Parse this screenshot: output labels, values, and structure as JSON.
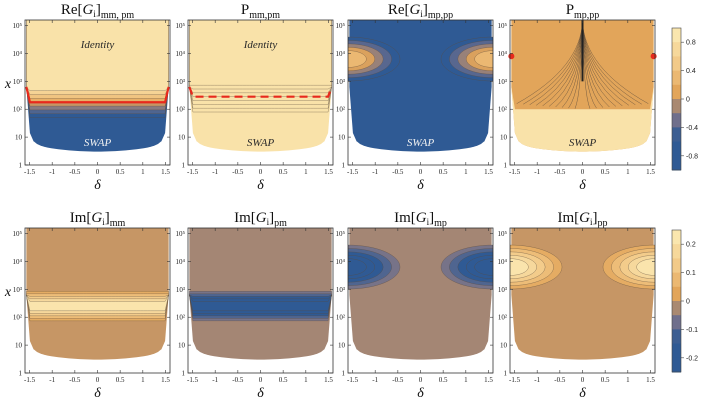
{
  "chart_data": [
    {
      "type": "heatmap",
      "title_main": "Re[",
      "title_italic": "G",
      "title_sub1": "i",
      "title_close": "]",
      "title_sub2": "mm, pm",
      "xlabel": "δ",
      "ylabel": "x",
      "xlim": [
        -1.6,
        1.6
      ],
      "ylim_log10": [
        0,
        5.2
      ],
      "x_ticks": [
        "-1.5",
        "-1",
        "-0.5",
        "0",
        "0.5",
        "1",
        "1.5"
      ],
      "y_ticks": [
        "1",
        "10",
        "10²",
        "10³",
        "10⁴",
        "10⁵"
      ],
      "annotations": [
        {
          "text": "Identity",
          "dark": false
        },
        {
          "text": "SWAP",
          "dark": true
        }
      ],
      "upper_level": 0.85,
      "lower_level": -0.85,
      "transition_log10x": 2.2,
      "red_curve": "solid",
      "colorbar_group": 0
    },
    {
      "type": "heatmap",
      "title_main": "P",
      "title_italic": "",
      "title_sub1": "",
      "title_close": "",
      "title_sub2": "mm,pm",
      "xlabel": "δ",
      "ylabel": "",
      "xlim": [
        -1.6,
        1.6
      ],
      "ylim_log10": [
        0,
        5.2
      ],
      "x_ticks": [
        "-1.5",
        "-1",
        "-0.5",
        "0",
        "0.5",
        "1",
        "1.5"
      ],
      "y_ticks": [
        "1",
        "10",
        "10²",
        "10³",
        "10⁴",
        "10⁵"
      ],
      "annotations": [
        {
          "text": "Identity",
          "dark": false
        },
        {
          "text": "SWAP",
          "dark": false
        }
      ],
      "upper_level": 0.85,
      "lower_level": 0.85,
      "transition_log10x": 2.4,
      "red_curve": "dashed",
      "colorbar_group": 0
    },
    {
      "type": "heatmap",
      "title_main": "Re[",
      "title_italic": "G",
      "title_sub1": "i",
      "title_close": "]",
      "title_sub2": "mp,pp",
      "xlabel": "δ",
      "ylabel": "",
      "xlim": [
        -1.6,
        1.6
      ],
      "ylim_log10": [
        0,
        5.2
      ],
      "x_ticks": [
        "-1.5",
        "-1",
        "-0.5",
        "0",
        "0.5",
        "1",
        "1.5"
      ],
      "y_ticks": [
        "1",
        "10",
        "10²",
        "10³",
        "10⁴",
        "10⁵"
      ],
      "annotations": [
        {
          "text": "SWAP",
          "dark": true
        }
      ],
      "background_level": -0.85,
      "lobe_level": 0.3,
      "lobe_log10x": 3.8,
      "colorbar_group": 0
    },
    {
      "type": "heatmap",
      "title_main": "P",
      "title_italic": "",
      "title_sub1": "",
      "title_close": "",
      "title_sub2": "mp,pp",
      "xlabel": "δ",
      "ylabel": "",
      "xlim": [
        -1.6,
        1.6
      ],
      "ylim_log10": [
        0,
        5.2
      ],
      "x_ticks": [
        "-1.5",
        "-1",
        "-0.5",
        "0",
        "0.5",
        "1",
        "1.5"
      ],
      "y_ticks": [
        "1",
        "10",
        "10²",
        "10³",
        "10⁴",
        "10⁵"
      ],
      "annotations": [
        {
          "text": "SWAP",
          "dark": false
        }
      ],
      "background_level": 0.1,
      "lower_level": 0.85,
      "red_points": [
        [
          -1.57,
          3.9
        ],
        [
          1.57,
          3.9
        ]
      ],
      "colorbar_group": 0
    },
    {
      "type": "heatmap",
      "title_main": "Im[",
      "title_italic": "G",
      "title_sub1": "i",
      "title_close": "]",
      "title_sub2": "mm",
      "xlabel": "δ",
      "ylabel": "x",
      "xlim": [
        -1.6,
        1.6
      ],
      "ylim_log10": [
        0,
        5.2
      ],
      "x_ticks": [
        "-1.5",
        "-1",
        "-0.5",
        "0",
        "0.5",
        "1",
        "1.5"
      ],
      "y_ticks": [
        "1",
        "10",
        "10²",
        "10³",
        "10⁴",
        "10⁵"
      ],
      "annotations": [],
      "background_level": 0.0,
      "band_level": 0.22,
      "band_log10x": 2.4,
      "colorbar_group": 1
    },
    {
      "type": "heatmap",
      "title_main": "Im[",
      "title_italic": "G",
      "title_sub1": "i",
      "title_close": "]",
      "title_sub2": "pm",
      "xlabel": "δ",
      "ylabel": "",
      "xlim": [
        -1.6,
        1.6
      ],
      "ylim_log10": [
        0,
        5.2
      ],
      "x_ticks": [
        "-1.5",
        "-1",
        "-0.5",
        "0",
        "0.5",
        "1",
        "1.5"
      ],
      "y_ticks": [
        "1",
        "10",
        "10²",
        "10³",
        "10⁴",
        "10⁵"
      ],
      "annotations": [],
      "background_level": -0.03,
      "band_level": -0.22,
      "band_log10x": 2.4,
      "colorbar_group": 1
    },
    {
      "type": "heatmap",
      "title_main": "Im[",
      "title_italic": "G",
      "title_sub1": "i",
      "title_close": "]",
      "title_sub2": "mp",
      "xlabel": "δ",
      "ylabel": "",
      "xlim": [
        -1.6,
        1.6
      ],
      "ylim_log10": [
        0,
        5.2
      ],
      "x_ticks": [
        "-1.5",
        "-1",
        "-0.5",
        "0",
        "0.5",
        "1",
        "1.5"
      ],
      "y_ticks": [
        "1",
        "10",
        "10²",
        "10³",
        "10⁴",
        "10⁵"
      ],
      "annotations": [],
      "background_level": -0.03,
      "lobe_level": -0.22,
      "lobe_log10x": 3.8,
      "colorbar_group": 1
    },
    {
      "type": "heatmap",
      "title_main": "Im[",
      "title_italic": "G",
      "title_sub1": "i",
      "title_close": "]",
      "title_sub2": "pp",
      "xlabel": "δ",
      "ylabel": "",
      "xlim": [
        -1.6,
        1.6
      ],
      "ylim_log10": [
        0,
        5.2
      ],
      "x_ticks": [
        "-1.5",
        "-1",
        "-0.5",
        "0",
        "0.5",
        "1",
        "1.5"
      ],
      "y_ticks": [
        "1",
        "10",
        "10²",
        "10³",
        "10⁴",
        "10⁵"
      ],
      "annotations": [],
      "background_level": 0.0,
      "lobe_level": 0.22,
      "lobe_log10x": 3.8,
      "colorbar_group": 1
    }
  ],
  "colorbars": [
    {
      "ticks": [
        "0.8",
        "0.4",
        "0",
        "-0.4",
        "-0.8"
      ],
      "tick_values": [
        0.8,
        0.4,
        0,
        -0.4,
        -0.8
      ],
      "range": [
        -1,
        1
      ]
    },
    {
      "ticks": [
        "0.2",
        "0.1",
        "0",
        "-0.1",
        "-0.2"
      ],
      "tick_values": [
        0.2,
        0.1,
        0,
        -0.1,
        -0.2
      ],
      "range": [
        -0.25,
        0.25
      ]
    }
  ],
  "colors": {
    "high": "#fcedb7",
    "mid_high": "#f1c684",
    "mid": "#e2a55a",
    "mid_low": "#b88f6a",
    "low_mid": "#6f6f8c",
    "low": "#2f5a94",
    "red_curve": "#e8291c"
  }
}
